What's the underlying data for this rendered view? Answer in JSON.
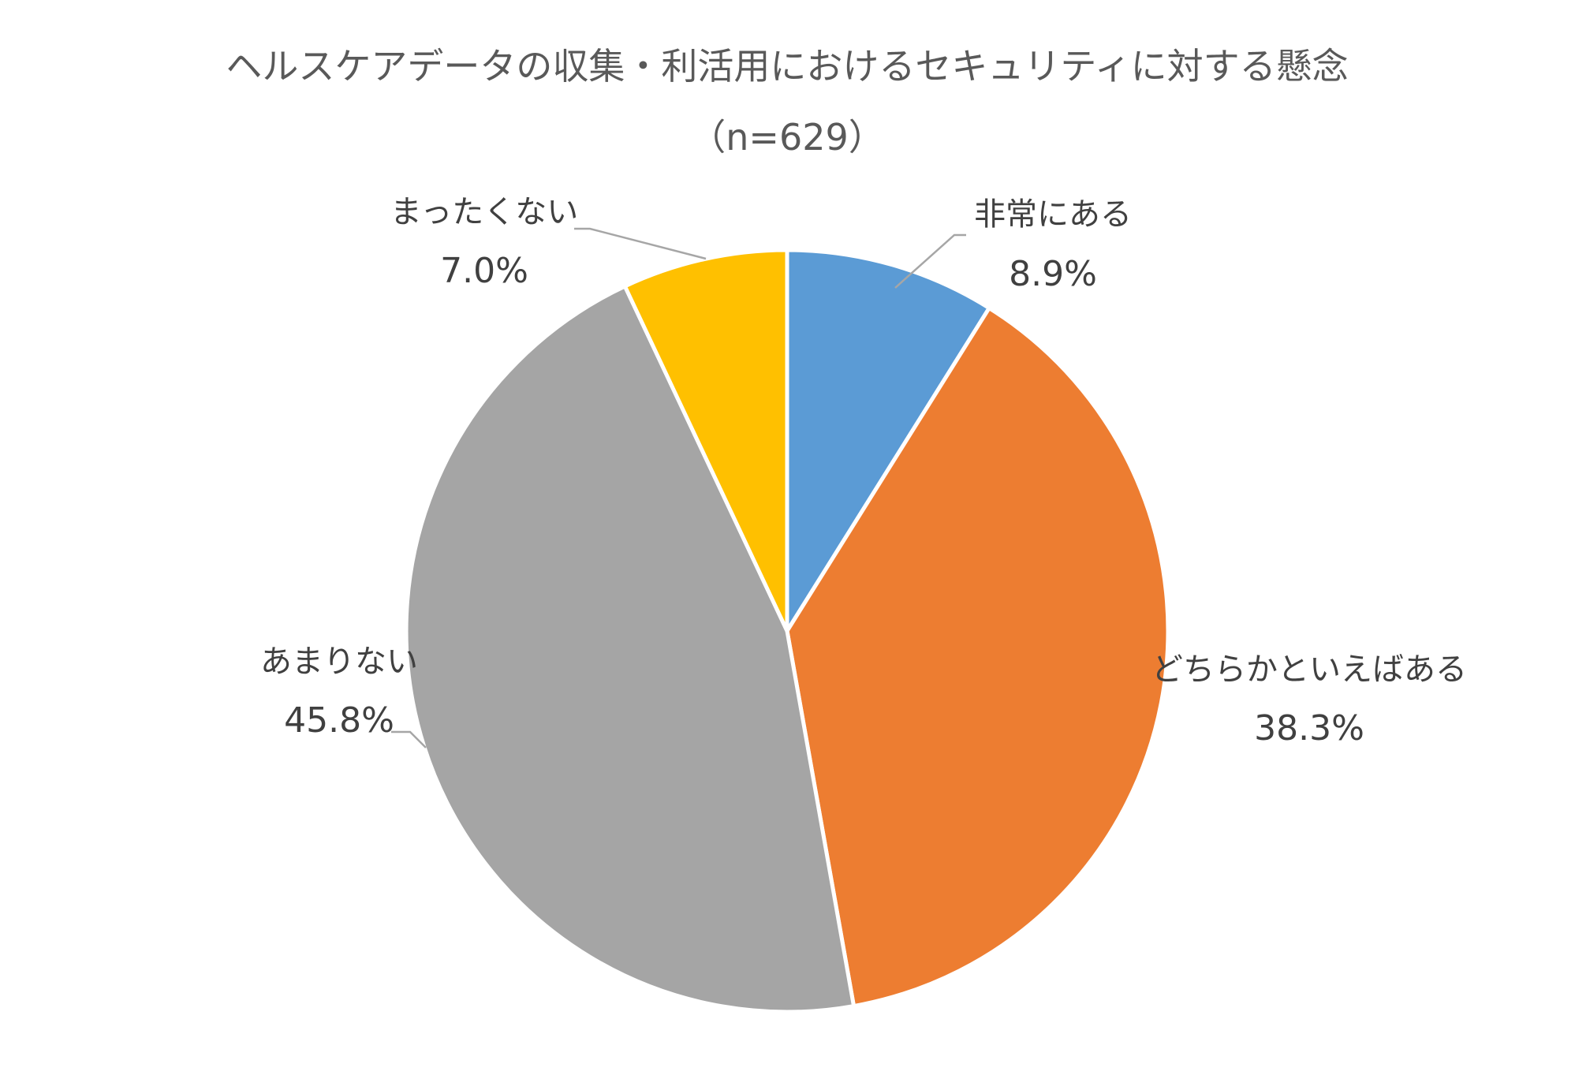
{
  "chart_data": {
    "type": "pie",
    "title": "ヘルスケアデータの収集・利活用におけるセキュリティに対する懸念",
    "subtitle": "（n=629）",
    "start_angle_deg": 0,
    "direction": "clockwise",
    "legend": "none",
    "slices": [
      {
        "label": "非常にある",
        "value": 8.9,
        "display": "8.9%",
        "color": "#5B9BD5"
      },
      {
        "label": "どちらかといえばある",
        "value": 38.3,
        "display": "38.3%",
        "color": "#ED7D31"
      },
      {
        "label": "あまりない",
        "value": 45.8,
        "display": "45.8%",
        "color": "#A5A5A5"
      },
      {
        "label": "まったくない",
        "value": 7.0,
        "display": "7.0%",
        "color": "#FFC000"
      }
    ]
  }
}
